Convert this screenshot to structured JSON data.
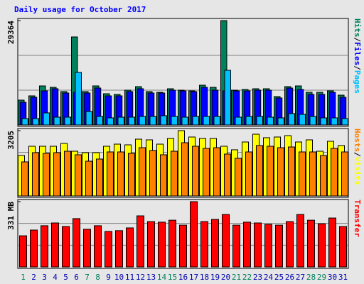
{
  "chart_data": [
    {
      "type": "bar",
      "title": "Daily usage for October 2017",
      "ylim": [
        0,
        29364
      ],
      "yticks": [
        29364
      ],
      "legend_separator": "/",
      "series": [
        {
          "name": "Hits",
          "color": "#00805c",
          "values": [
            6992,
            8190,
            10987,
            10587,
            9389,
            24770,
            9389,
            10987,
            8789,
            8590,
            9788,
            10787,
            9389,
            9189,
            10188,
            9788,
            9588,
            11186,
            10587,
            29364,
            9788,
            9988,
            10188,
            10188,
            7990,
            10787,
            10987,
            9189,
            9189,
            9588,
            8390
          ]
        },
        {
          "name": "Files",
          "color": "#0000ff",
          "values": [
            6392,
            7791,
            9588,
            10188,
            8989,
            9189,
            8989,
            10388,
            8190,
            8190,
            9389,
            10188,
            8989,
            8989,
            9788,
            9588,
            9389,
            10587,
            9788,
            9588,
            9588,
            9588,
            9788,
            9788,
            7591,
            10388,
            9988,
            8590,
            8590,
            9189,
            7791
          ]
        },
        {
          "name": "Pages",
          "color": "#00c0ff",
          "values": [
            1798,
            1798,
            3396,
            2197,
            2197,
            14782,
            3795,
            2397,
            1998,
            2197,
            2197,
            2397,
            2397,
            2597,
            2397,
            2197,
            2397,
            2397,
            2397,
            15382,
            2197,
            2397,
            2397,
            2197,
            1998,
            3196,
            2996,
            2397,
            1998,
            1998,
            1798
          ]
        }
      ]
    },
    {
      "type": "bar",
      "ylim": [
        0,
        3205
      ],
      "yticks": [
        3205
      ],
      "legend_separator": "/",
      "series": [
        {
          "name": "Hosts",
          "color": "#ff8000",
          "values": [
            1672,
            2125,
            2090,
            2125,
            2195,
            2021,
            1707,
            1812,
            2160,
            2160,
            2090,
            2369,
            2230,
            2021,
            2195,
            2613,
            2439,
            2334,
            2369,
            2056,
            1847,
            2160,
            2474,
            2439,
            2369,
            2404,
            2160,
            2160,
            1986,
            2334,
            2160
          ]
        },
        {
          "name": "Visits",
          "color": "#ffff00",
          "values": [
            1986,
            2439,
            2439,
            2439,
            2578,
            2195,
            2125,
            2125,
            2439,
            2543,
            2508,
            2787,
            2752,
            2543,
            2822,
            3205,
            2892,
            2822,
            2822,
            2439,
            2265,
            2648,
            3031,
            2857,
            2892,
            2961,
            2648,
            2752,
            2195,
            2683,
            2474
          ]
        }
      ]
    },
    {
      "type": "bar",
      "ylim": [
        0,
        331
      ],
      "yticks": [
        {
          "value": 331,
          "label": "331 MB"
        }
      ],
      "categories": [
        "1",
        "2",
        "3",
        "4",
        "5",
        "6",
        "7",
        "8",
        "9",
        "10",
        "11",
        "12",
        "13",
        "14",
        "15",
        "16",
        "17",
        "18",
        "19",
        "20",
        "21",
        "22",
        "23",
        "24",
        "25",
        "26",
        "27",
        "28",
        "29",
        "30",
        "31"
      ],
      "category_colors": [
        "#00805c",
        "#0000b0",
        "#0000b0",
        "#0000b0",
        "#0000b0",
        "#0000b0",
        "#00805c",
        "#00805c",
        "#0000b0",
        "#0000b0",
        "#0000b0",
        "#0000b0",
        "#0000b0",
        "#00805c",
        "#00805c",
        "#0000b0",
        "#0000b0",
        "#0000b0",
        "#0000b0",
        "#0000b0",
        "#00805c",
        "#00805c",
        "#0000b0",
        "#0000b0",
        "#0000b0",
        "#0000b0",
        "#0000b0",
        "#00805c",
        "#00805c",
        "#0000b0",
        "#0000b0"
      ],
      "series": [
        {
          "name": "Transfer",
          "color": "#ff0000",
          "values": [
            158,
            187,
            209,
            223,
            205,
            245,
            191,
            209,
            180,
            184,
            198,
            259,
            230,
            227,
            237,
            212,
            331,
            230,
            241,
            266,
            212,
            227,
            223,
            216,
            212,
            230,
            266,
            237,
            219,
            248,
            205
          ]
        }
      ]
    }
  ]
}
